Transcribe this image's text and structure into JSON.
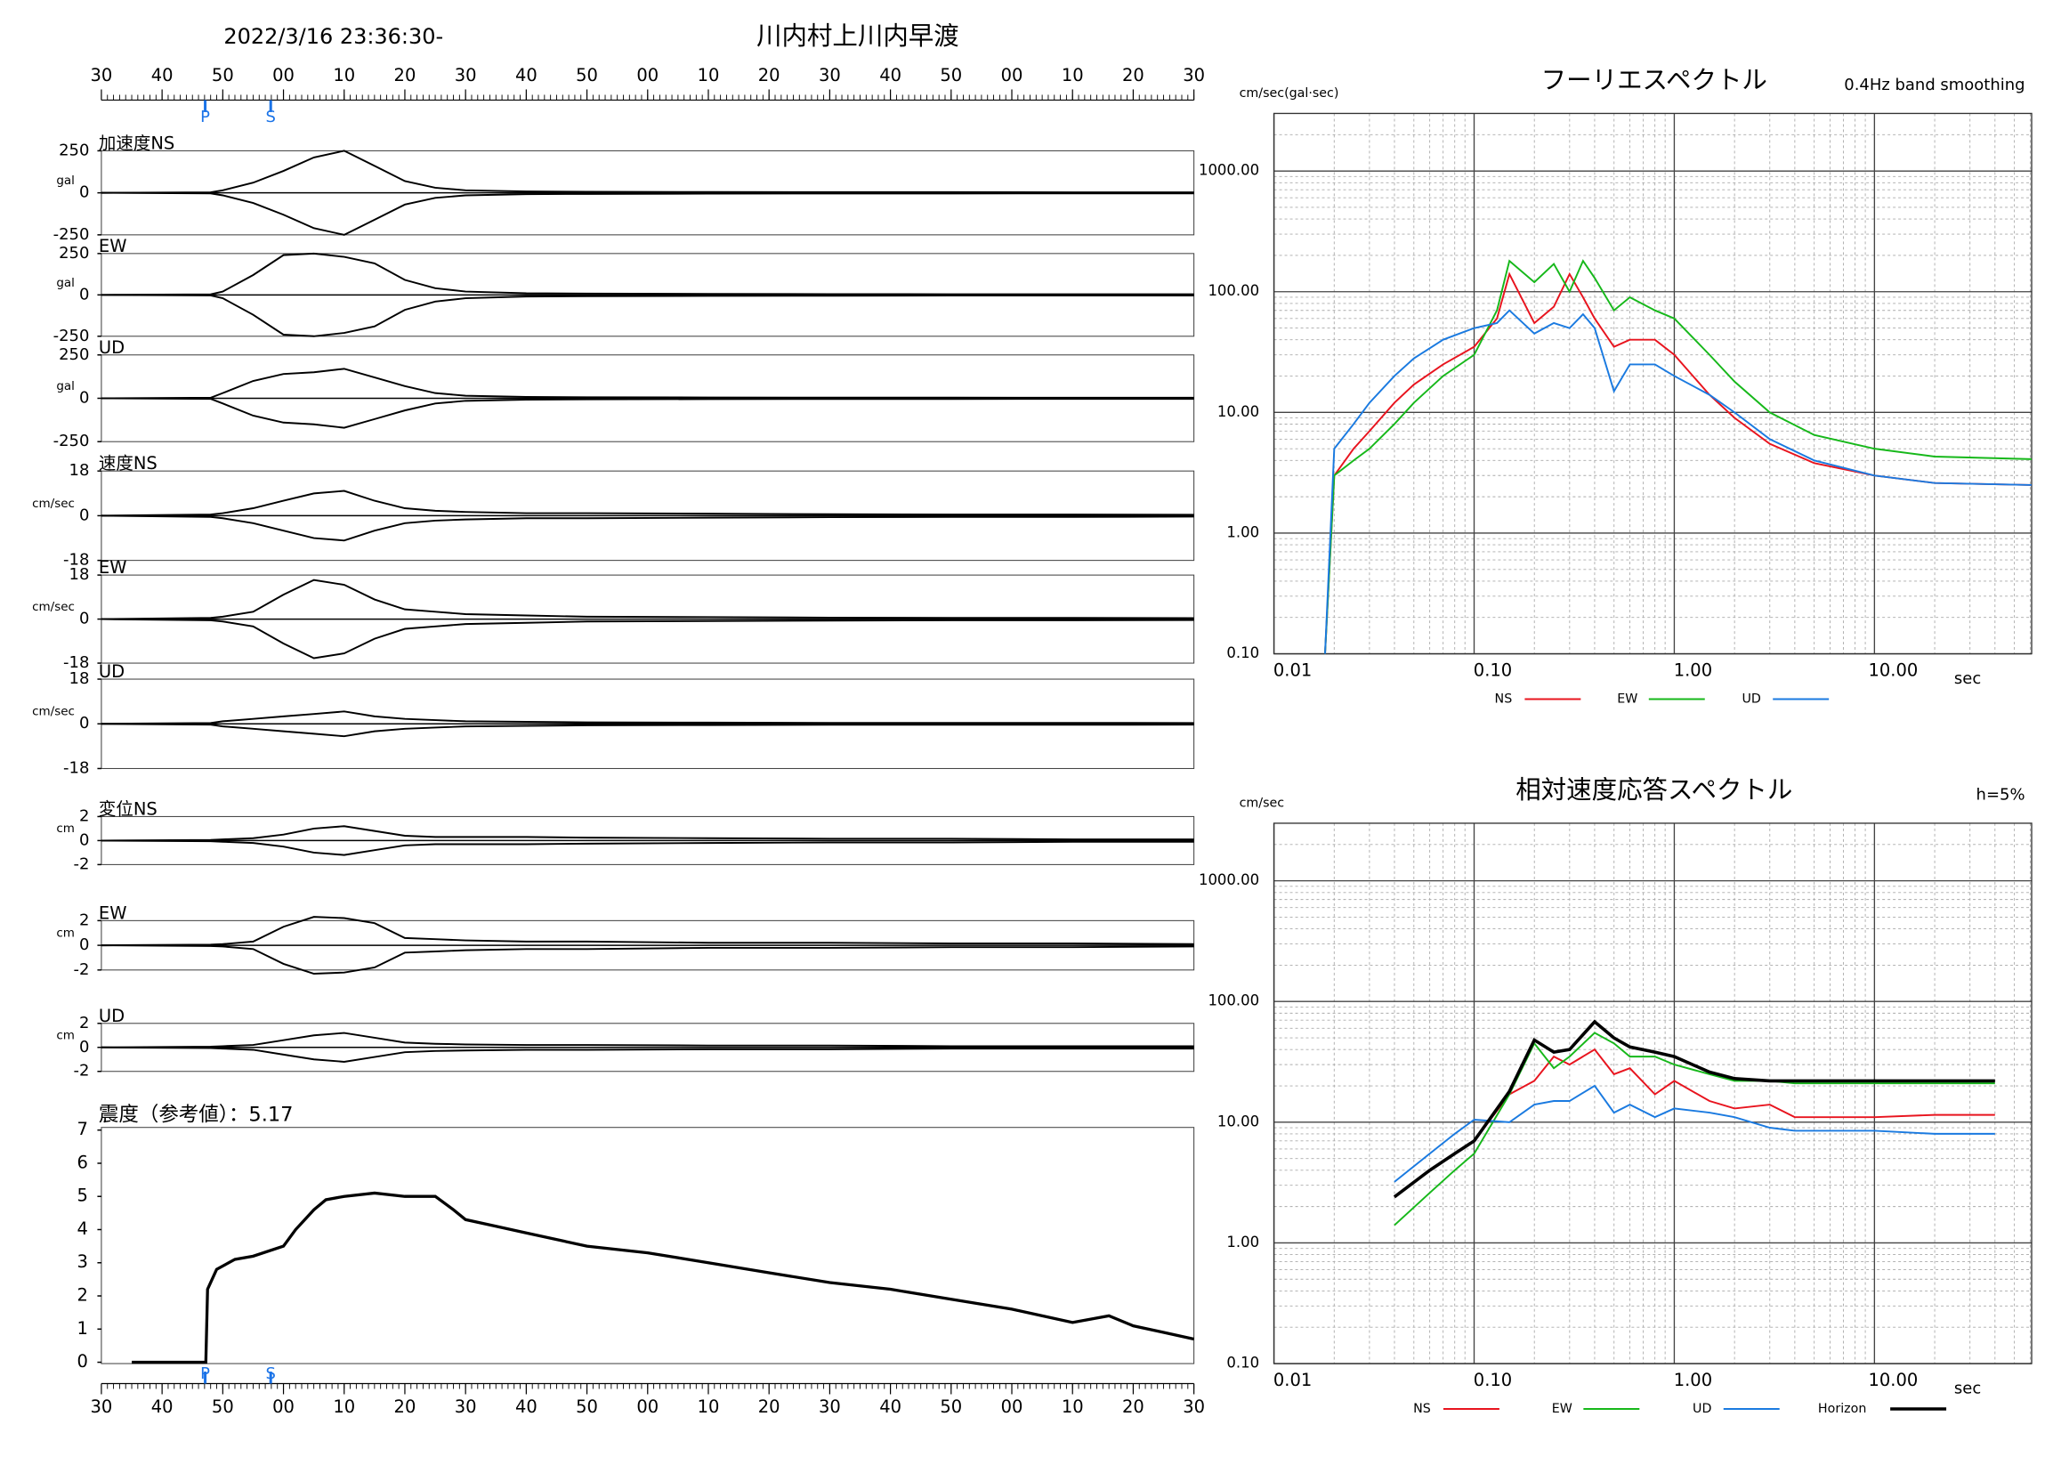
{
  "header": {
    "datetime": "2022/3/16 23:36:30-",
    "station": "川内村上川内早渡"
  },
  "chart_data": [
    {
      "type": "time-axis",
      "xlim": [
        0,
        180
      ],
      "xticks": [
        {
          "value": 0,
          "label": "30"
        },
        {
          "value": 10,
          "label": "40"
        },
        {
          "value": 20,
          "label": "50"
        },
        {
          "value": 30,
          "label": "00"
        },
        {
          "value": 40,
          "label": "10"
        },
        {
          "value": 50,
          "label": "20"
        },
        {
          "value": 60,
          "label": "30"
        },
        {
          "value": 70,
          "label": "40"
        },
        {
          "value": 80,
          "label": "50"
        },
        {
          "value": 90,
          "label": "00"
        },
        {
          "value": 100,
          "label": "10"
        },
        {
          "value": 110,
          "label": "20"
        },
        {
          "value": 120,
          "label": "30"
        },
        {
          "value": 130,
          "label": "40"
        },
        {
          "value": 140,
          "label": "50"
        },
        {
          "value": 150,
          "label": "00"
        },
        {
          "value": 160,
          "label": "10"
        },
        {
          "value": 170,
          "label": "20"
        },
        {
          "value": 180,
          "label": "30"
        }
      ],
      "markers": [
        {
          "label": "P",
          "value": 17.1
        },
        {
          "label": "S",
          "value": 27.9
        }
      ],
      "marker_color": "#1a73e8"
    },
    {
      "type": "envelope",
      "label": "加速度NS",
      "unit": "gal",
      "ylim": [
        -250,
        250
      ],
      "yticks": [
        -250,
        0,
        250
      ],
      "x": [
        0,
        18,
        20,
        25,
        30,
        35,
        40,
        45,
        50,
        55,
        60,
        70,
        80,
        100,
        120,
        140,
        160,
        180
      ],
      "values": [
        0,
        3,
        15,
        60,
        130,
        210,
        250,
        160,
        70,
        30,
        15,
        8,
        6,
        5,
        4,
        4,
        3,
        3
      ]
    },
    {
      "type": "envelope",
      "label": "EW",
      "unit": "gal",
      "ylim": [
        -250,
        250
      ],
      "yticks": [
        -250,
        0,
        250
      ],
      "x": [
        0,
        18,
        20,
        25,
        30,
        35,
        40,
        45,
        50,
        55,
        60,
        70,
        80,
        100,
        120,
        140,
        160,
        180
      ],
      "values": [
        0,
        3,
        20,
        120,
        240,
        250,
        230,
        190,
        90,
        40,
        20,
        10,
        8,
        6,
        5,
        4,
        4,
        4
      ]
    },
    {
      "type": "envelope",
      "label": "UD",
      "unit": "gal",
      "ylim": [
        -250,
        250
      ],
      "yticks": [
        -250,
        0,
        250
      ],
      "x": [
        0,
        18,
        20,
        25,
        30,
        35,
        40,
        45,
        50,
        55,
        60,
        70,
        80,
        100,
        120,
        140,
        160,
        180
      ],
      "values": [
        0,
        3,
        30,
        100,
        140,
        150,
        170,
        120,
        70,
        30,
        15,
        8,
        6,
        5,
        4,
        4,
        3,
        3
      ]
    },
    {
      "type": "envelope",
      "label": "速度NS",
      "unit": "cm/sec",
      "ylim": [
        -18,
        18
      ],
      "yticks": [
        -18,
        0,
        18
      ],
      "x": [
        0,
        18,
        20,
        25,
        30,
        35,
        40,
        45,
        50,
        55,
        60,
        70,
        80,
        100,
        120,
        140,
        160,
        180
      ],
      "values": [
        0,
        0.5,
        1,
        3,
        6,
        9,
        10,
        6,
        3,
        2,
        1.5,
        1,
        1,
        0.8,
        0.6,
        0.5,
        0.5,
        0.4
      ]
    },
    {
      "type": "envelope",
      "label": "EW",
      "unit": "cm/sec",
      "ylim": [
        -18,
        18
      ],
      "yticks": [
        -18,
        0,
        18
      ],
      "x": [
        0,
        18,
        20,
        25,
        30,
        35,
        40,
        45,
        50,
        55,
        60,
        70,
        80,
        100,
        120,
        140,
        160,
        180
      ],
      "values": [
        0,
        0.5,
        1,
        3,
        10,
        16,
        14,
        8,
        4,
        3,
        2,
        1.5,
        1,
        0.8,
        0.6,
        0.5,
        0.5,
        0.4
      ]
    },
    {
      "type": "envelope",
      "label": "UD",
      "unit": "cm/sec",
      "ylim": [
        -18,
        18
      ],
      "yticks": [
        -18,
        0,
        18
      ],
      "x": [
        0,
        18,
        20,
        25,
        30,
        35,
        40,
        45,
        50,
        55,
        60,
        70,
        80,
        100,
        120,
        140,
        160,
        180
      ],
      "values": [
        0,
        0.3,
        1,
        2,
        3,
        4,
        5,
        3,
        2,
        1.5,
        1,
        0.8,
        0.6,
        0.5,
        0.4,
        0.4,
        0.4,
        0.3
      ]
    },
    {
      "type": "envelope",
      "label": "変位NS",
      "unit": "cm",
      "ylim": [
        -2,
        2
      ],
      "yticks": [
        -2,
        0,
        2
      ],
      "x": [
        0,
        18,
        20,
        25,
        30,
        35,
        40,
        45,
        50,
        55,
        60,
        70,
        80,
        100,
        120,
        140,
        160,
        180
      ],
      "values": [
        0,
        0.05,
        0.1,
        0.2,
        0.5,
        1,
        1.2,
        0.8,
        0.4,
        0.3,
        0.3,
        0.3,
        0.25,
        0.2,
        0.15,
        0.15,
        0.1,
        0.1
      ]
    },
    {
      "type": "envelope",
      "label": "EW",
      "unit": "cm",
      "ylim": [
        -2,
        2
      ],
      "yticks": [
        -2,
        0,
        2
      ],
      "x": [
        0,
        18,
        20,
        25,
        30,
        35,
        40,
        45,
        50,
        55,
        60,
        70,
        80,
        100,
        120,
        140,
        160,
        180
      ],
      "values": [
        0,
        0.05,
        0.1,
        0.3,
        1.5,
        2.3,
        2.2,
        1.8,
        0.6,
        0.5,
        0.4,
        0.3,
        0.3,
        0.2,
        0.2,
        0.15,
        0.15,
        0.1
      ]
    },
    {
      "type": "envelope",
      "label": "UD",
      "unit": "cm",
      "ylim": [
        -2,
        2
      ],
      "yticks": [
        -2,
        0,
        2
      ],
      "x": [
        0,
        18,
        20,
        25,
        30,
        35,
        40,
        45,
        50,
        55,
        60,
        70,
        80,
        100,
        120,
        140,
        160,
        180
      ],
      "values": [
        0,
        0.05,
        0.1,
        0.2,
        0.6,
        1,
        1.2,
        0.8,
        0.4,
        0.3,
        0.25,
        0.2,
        0.2,
        0.15,
        0.15,
        0.1,
        0.1,
        0.1
      ]
    },
    {
      "type": "line",
      "title": "震度（参考値）：5.17",
      "ylim": [
        0,
        7
      ],
      "yticks": [
        0,
        1,
        2,
        3,
        4,
        5,
        6,
        7
      ],
      "x": [
        5,
        17.2,
        17.5,
        19,
        22,
        25,
        30,
        32,
        35,
        37,
        40,
        45,
        50,
        55,
        58,
        60,
        65,
        70,
        80,
        90,
        100,
        110,
        120,
        130,
        140,
        150,
        155,
        160,
        163,
        166,
        170,
        175,
        180
      ],
      "values": [
        0,
        0,
        2.2,
        2.8,
        3.1,
        3.2,
        3.5,
        4.0,
        4.6,
        4.9,
        5,
        5.1,
        5,
        5,
        4.6,
        4.3,
        4.1,
        3.9,
        3.5,
        3.3,
        3,
        2.7,
        2.4,
        2.2,
        1.9,
        1.6,
        1.4,
        1.2,
        1.3,
        1.4,
        1.1,
        0.9,
        0.7
      ],
      "color": "#000000"
    },
    {
      "type": "spectrum",
      "title": "フーリエスペクトル",
      "subtitle": "0.4Hz band smoothing",
      "ylabel": "cm/sec(gal·sec)",
      "xlabel": "sec",
      "log_x": true,
      "log_y": true,
      "grid": true,
      "legend": "bottom",
      "xlim": [
        0.01,
        61
      ],
      "ylim": [
        0.1,
        3000
      ],
      "xticks": [
        {
          "value": 0.01,
          "label": "0.01"
        },
        {
          "value": 0.1,
          "label": "0.10"
        },
        {
          "value": 1,
          "label": "1.00"
        },
        {
          "value": 10,
          "label": "10.00"
        }
      ],
      "yticks": [
        {
          "value": 0.1,
          "label": "0.10"
        },
        {
          "value": 1,
          "label": "1.00"
        },
        {
          "value": 10,
          "label": "10.00"
        },
        {
          "value": 100,
          "label": "100.00"
        },
        {
          "value": 1000,
          "label": "1000.00"
        }
      ],
      "x": [
        0.018,
        0.02,
        0.025,
        0.03,
        0.04,
        0.05,
        0.07,
        0.1,
        0.13,
        0.15,
        0.2,
        0.25,
        0.3,
        0.35,
        0.4,
        0.5,
        0.6,
        0.8,
        1,
        1.5,
        2,
        3,
        5,
        10,
        20,
        61
      ],
      "series": [
        {
          "name": "NS",
          "color": "#e8141e",
          "values": [
            0.1,
            3,
            5,
            7,
            12,
            17,
            25,
            35,
            60,
            140,
            55,
            75,
            140,
            90,
            60,
            35,
            40,
            40,
            30,
            14,
            9,
            5.5,
            3.8,
            3,
            2.6,
            2.5
          ]
        },
        {
          "name": "EW",
          "color": "#16b81a",
          "values": [
            0.1,
            3,
            4,
            5,
            8,
            12,
            20,
            30,
            70,
            180,
            120,
            170,
            100,
            180,
            130,
            70,
            90,
            70,
            60,
            30,
            18,
            10,
            6.5,
            5,
            4.3,
            4.1
          ]
        },
        {
          "name": "UD",
          "color": "#1a7ae0",
          "values": [
            0.1,
            5,
            8,
            12,
            20,
            28,
            40,
            50,
            55,
            70,
            45,
            55,
            50,
            65,
            50,
            15,
            25,
            25,
            20,
            14,
            10,
            6,
            4,
            3,
            2.6,
            2.5
          ]
        }
      ]
    },
    {
      "type": "spectrum",
      "title": "相対速度応答スペクトル",
      "subtitle": "h=5%",
      "ylabel": "cm/sec",
      "xlabel": "sec",
      "log_x": true,
      "log_y": true,
      "grid": true,
      "legend": "bottom",
      "xlim": [
        0.01,
        61
      ],
      "ylim": [
        0.1,
        3000
      ],
      "xticks": [
        {
          "value": 0.01,
          "label": "0.01"
        },
        {
          "value": 0.1,
          "label": "0.10"
        },
        {
          "value": 1,
          "label": "1.00"
        },
        {
          "value": 10,
          "label": "10.00"
        }
      ],
      "yticks": [
        {
          "value": 0.1,
          "label": "0.10"
        },
        {
          "value": 1,
          "label": "1.00"
        },
        {
          "value": 10,
          "label": "10.00"
        },
        {
          "value": 100,
          "label": "100.00"
        },
        {
          "value": 1000,
          "label": "1000.00"
        }
      ],
      "x": [
        0.04,
        0.06,
        0.08,
        0.1,
        0.15,
        0.2,
        0.25,
        0.3,
        0.4,
        0.5,
        0.6,
        0.8,
        1,
        1.5,
        2,
        3,
        4,
        5,
        10,
        20,
        40
      ],
      "series": [
        {
          "name": "NS",
          "color": "#e8141e",
          "values": [
            2.4,
            4,
            5.5,
            7,
            17,
            22,
            35,
            30,
            40,
            25,
            28,
            17,
            22,
            15,
            13,
            14,
            11,
            11,
            11,
            11.5,
            11.5
          ]
        },
        {
          "name": "EW",
          "color": "#16b81a",
          "values": [
            1.4,
            2.6,
            4,
            5.5,
            17,
            45,
            28,
            35,
            55,
            45,
            35,
            35,
            30,
            25,
            22,
            22,
            21,
            21,
            21,
            21,
            21
          ]
        },
        {
          "name": "UD",
          "color": "#1a7ae0",
          "values": [
            3.2,
            5.5,
            8,
            10.5,
            10,
            14,
            15,
            15,
            20,
            12,
            14,
            11,
            13,
            12,
            11,
            9,
            8.5,
            8.5,
            8.5,
            8,
            8
          ]
        },
        {
          "name": "Horizon",
          "color": "#000000",
          "values": [
            2.4,
            4,
            5.5,
            7,
            18,
            48,
            38,
            40,
            68,
            50,
            42,
            38,
            35,
            26,
            23,
            22,
            22,
            22,
            22,
            22,
            22
          ]
        }
      ]
    }
  ]
}
